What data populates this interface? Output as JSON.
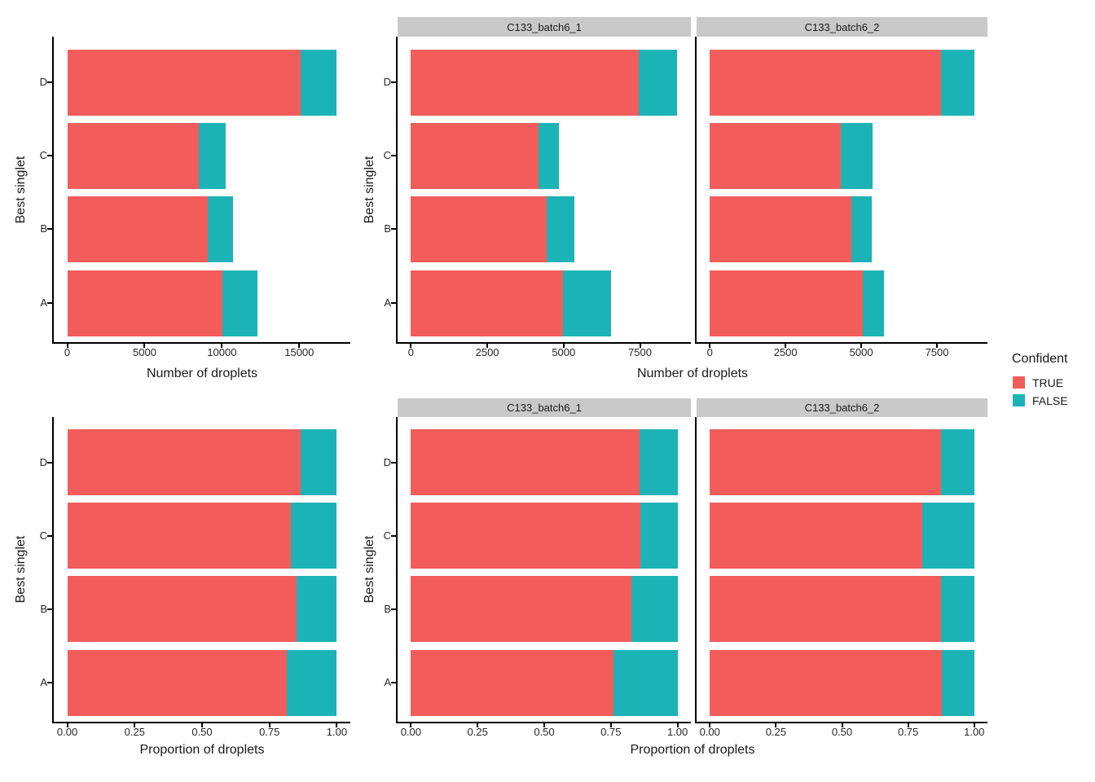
{
  "figure": {
    "background": "#FFFFFF"
  },
  "palette": {
    "true_color": "#F25D5B",
    "false_color": "#1CB3B6",
    "strip_bg": "#C9C9C9",
    "axis_line": "#000000",
    "tick_text": "#262626",
    "title_text": "#1A1A1A"
  },
  "legend": {
    "title": "Confident",
    "items": [
      {
        "label": "TRUE",
        "color": "#F25D5B"
      },
      {
        "label": "FALSE",
        "color": "#1CB3B6"
      }
    ]
  },
  "chart_data": [
    {
      "id": "counts-all",
      "type": "bar",
      "orientation": "horizontal",
      "stacked": true,
      "categories": [
        "A",
        "B",
        "C",
        "D"
      ],
      "xlabel": "Number of droplets",
      "ylabel": "Best singlet",
      "xlim": [
        0,
        17430
      ],
      "xticks": [
        0,
        5000,
        10000,
        15000
      ],
      "xtick_labels": [
        "0",
        "5000",
        "10000",
        "15000"
      ],
      "grid": false,
      "legend_position": "right",
      "series": [
        {
          "name": "TRUE",
          "values": [
            10030,
            9110,
            8490,
            15100
          ]
        },
        {
          "name": "FALSE",
          "values": [
            2280,
            1600,
            1740,
            2330
          ]
        }
      ]
    },
    {
      "id": "counts-by-batch",
      "type": "bar",
      "orientation": "horizontal",
      "stacked": true,
      "categories": [
        "A",
        "B",
        "C",
        "D"
      ],
      "xlabel": "Number of droplets",
      "ylabel": "Best singlet",
      "xlim": [
        0,
        8730
      ],
      "xticks": [
        0,
        2500,
        5000,
        7500
      ],
      "xtick_labels": [
        "0",
        "2500",
        "5000",
        "7500"
      ],
      "grid": false,
      "facets": [
        {
          "label": "C133_batch6_1",
          "series": [
            {
              "name": "TRUE",
              "values": [
                4980,
                4440,
                4170,
                7460
              ]
            },
            {
              "name": "FALSE",
              "values": [
                1570,
                920,
                680,
                1240
              ]
            }
          ]
        },
        {
          "label": "C133_batch6_2",
          "series": [
            {
              "name": "TRUE",
              "values": [
                5050,
                4670,
                4320,
                7640
              ]
            },
            {
              "name": "FALSE",
              "values": [
                710,
                680,
                1060,
                1090
              ]
            }
          ]
        }
      ]
    },
    {
      "id": "proportion-all",
      "type": "bar",
      "orientation": "horizontal",
      "stacked": true,
      "categories": [
        "A",
        "B",
        "C",
        "D"
      ],
      "xlabel": "Proportion of droplets",
      "ylabel": "Best singlet",
      "xlim": [
        0,
        1
      ],
      "xticks": [
        0,
        0.25,
        0.5,
        0.75,
        1
      ],
      "xtick_labels": [
        "0.00",
        "0.25",
        "0.50",
        "0.75",
        "1.00"
      ],
      "grid": false,
      "series": [
        {
          "name": "TRUE",
          "values": [
            0.815,
            0.851,
            0.83,
            0.866
          ]
        },
        {
          "name": "FALSE",
          "values": [
            0.185,
            0.149,
            0.17,
            0.134
          ]
        }
      ]
    },
    {
      "id": "proportion-by-batch",
      "type": "bar",
      "orientation": "horizontal",
      "stacked": true,
      "categories": [
        "A",
        "B",
        "C",
        "D"
      ],
      "xlabel": "Proportion of droplets",
      "ylabel": "Best singlet",
      "xlim": [
        0,
        1
      ],
      "xticks": [
        0,
        0.25,
        0.5,
        0.75,
        1
      ],
      "xtick_labels": [
        "0.00",
        "0.25",
        "0.50",
        "0.75",
        "1.00"
      ],
      "grid": false,
      "facets": [
        {
          "label": "C133_batch6_1",
          "series": [
            {
              "name": "TRUE",
              "values": [
                0.76,
                0.828,
                0.86,
                0.857
              ]
            },
            {
              "name": "FALSE",
              "values": [
                0.24,
                0.172,
                0.14,
                0.143
              ]
            }
          ]
        },
        {
          "label": "C133_batch6_2",
          "series": [
            {
              "name": "TRUE",
              "values": [
                0.877,
                0.873,
                0.803,
                0.875
              ]
            },
            {
              "name": "FALSE",
              "values": [
                0.123,
                0.127,
                0.197,
                0.125
              ]
            }
          ]
        }
      ]
    }
  ]
}
